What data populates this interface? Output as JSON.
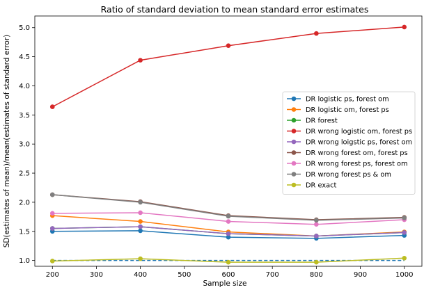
{
  "chart_data": {
    "type": "line",
    "title": "Ratio of standard deviation to mean standard error estimates",
    "xlabel": "Sample size",
    "ylabel": "SD(estimates of mean)/mean(estimates of standard error)",
    "x": [
      200,
      400,
      600,
      800,
      1000
    ],
    "xlim": [
      160,
      1040
    ],
    "ylim": [
      0.9,
      5.2
    ],
    "xticks": [
      200,
      300,
      400,
      500,
      600,
      700,
      800,
      900,
      1000
    ],
    "yticks": [
      1.0,
      1.5,
      2.0,
      2.5,
      3.0,
      3.5,
      4.0,
      4.5,
      5.0
    ],
    "grid": false,
    "legend_position": "center-right",
    "reference_line": {
      "y": 1.0,
      "style": "dashed",
      "color": "#1f77b4"
    },
    "series": [
      {
        "name": "DR logistic ps, forest om",
        "color": "#1f77b4",
        "values": [
          1.5,
          1.51,
          1.4,
          1.38,
          1.43
        ]
      },
      {
        "name": "DR logistic om, forest ps",
        "color": "#ff7f0e",
        "values": [
          1.77,
          1.67,
          1.49,
          1.42,
          1.49
        ]
      },
      {
        "name": "DR forest",
        "color": "#2ca02c",
        "values": [
          1.55,
          1.58,
          1.46,
          1.42,
          1.48
        ]
      },
      {
        "name": "DR wrong logistic om, forest ps",
        "color": "#d62728",
        "values": [
          3.64,
          4.44,
          4.69,
          4.9,
          5.01
        ]
      },
      {
        "name": "DR wrong loigstic ps, forest om",
        "color": "#9467bd",
        "values": [
          1.55,
          1.58,
          1.46,
          1.42,
          1.48
        ]
      },
      {
        "name": "DR wrong forest om, forest ps",
        "color": "#8c564b",
        "values": [
          2.13,
          2.01,
          1.77,
          1.7,
          1.74
        ]
      },
      {
        "name": "DR wrong forest ps, forest om",
        "color": "#e377c2",
        "values": [
          1.81,
          1.82,
          1.67,
          1.62,
          1.7
        ]
      },
      {
        "name": "DR wrong forest ps & om",
        "color": "#7f7f7f",
        "values": [
          2.13,
          2.0,
          1.76,
          1.69,
          1.73
        ]
      },
      {
        "name": "DR exact",
        "color": "#bcbd22",
        "values": [
          0.99,
          1.03,
          0.97,
          0.97,
          1.04
        ]
      }
    ]
  }
}
